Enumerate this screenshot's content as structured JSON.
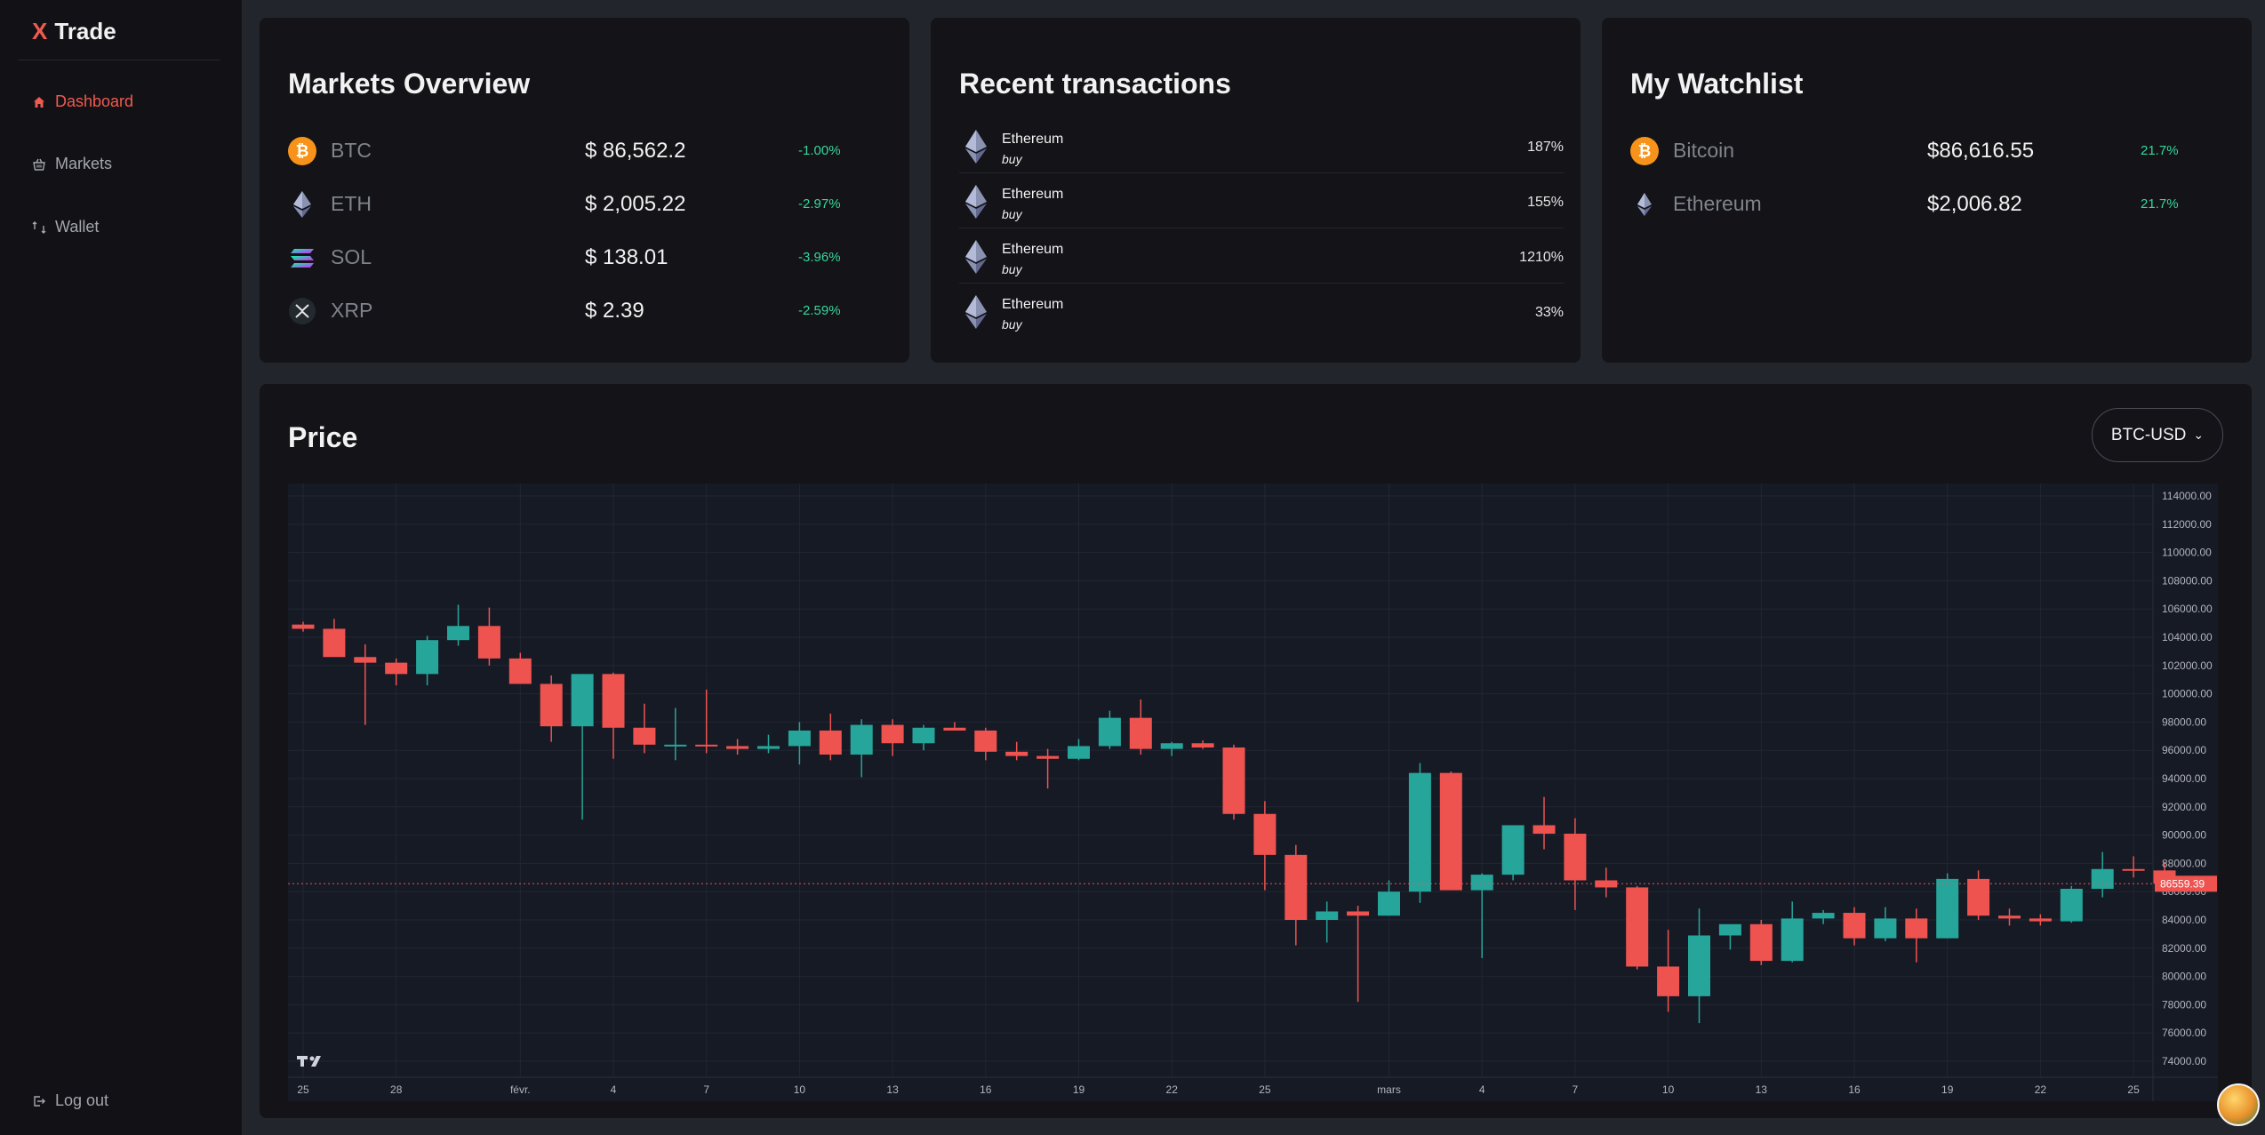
{
  "app": {
    "brand_x": "X",
    "brand_name": "Trade"
  },
  "sidebar": {
    "items": [
      {
        "label": "Dashboard",
        "icon": "home-icon",
        "active": true
      },
      {
        "label": "Markets",
        "icon": "basket-icon",
        "active": false
      },
      {
        "label": "Wallet",
        "icon": "wallet-icon",
        "active": false
      }
    ],
    "logout": "Log out"
  },
  "markets": {
    "title": "Markets Overview",
    "rows": [
      {
        "symbol": "BTC",
        "price": "$ 86,562.2",
        "change": "-1.00%",
        "icon": "btc-icon"
      },
      {
        "symbol": "ETH",
        "price": "$ 2,005.22",
        "change": "-2.97%",
        "icon": "eth-icon"
      },
      {
        "symbol": "SOL",
        "price": "$ 138.01",
        "change": "-3.96%",
        "icon": "sol-icon"
      },
      {
        "symbol": "XRP",
        "price": "$ 2.39",
        "change": "-2.59%",
        "icon": "xrp-icon"
      }
    ]
  },
  "transactions": {
    "title": "Recent transactions",
    "rows": [
      {
        "name": "Ethereum",
        "type": "buy",
        "pct": "187%"
      },
      {
        "name": "Ethereum",
        "type": "buy",
        "pct": "155%"
      },
      {
        "name": "Ethereum",
        "type": "buy",
        "pct": "1210%"
      },
      {
        "name": "Ethereum",
        "type": "buy",
        "pct": "33%"
      }
    ]
  },
  "watchlist": {
    "title": "My Watchlist",
    "rows": [
      {
        "name": "Bitcoin",
        "price": "$86,616.55",
        "change": "21.7%",
        "icon": "btc-icon"
      },
      {
        "name": "Ethereum",
        "price": "$2,006.82",
        "change": "21.7%",
        "icon": "eth-icon"
      }
    ]
  },
  "price": {
    "title": "Price",
    "pair": "BTC-USD"
  },
  "colors": {
    "up": "#26a69a",
    "down": "#ef5350",
    "accent": "#f05a4f",
    "positive_text": "#37d69a"
  },
  "chart_data": {
    "type": "candlestick",
    "y_ticks": [
      "114000.00",
      "112000.00",
      "110000.00",
      "108000.00",
      "106000.00",
      "104000.00",
      "102000.00",
      "100000.00",
      "98000.00",
      "96000.00",
      "94000.00",
      "92000.00",
      "90000.00",
      "88000.00",
      "86000.00",
      "84000.00",
      "82000.00",
      "80000.00",
      "78000.00",
      "76000.00",
      "74000.00"
    ],
    "ylim": [
      73000,
      115000
    ],
    "x_ticks": [
      {
        "label": "25",
        "index": 0
      },
      {
        "label": "28",
        "index": 3
      },
      {
        "label": "févr.",
        "index": 7
      },
      {
        "label": "4",
        "index": 10
      },
      {
        "label": "7",
        "index": 13
      },
      {
        "label": "10",
        "index": 16
      },
      {
        "label": "13",
        "index": 19
      },
      {
        "label": "16",
        "index": 22
      },
      {
        "label": "19",
        "index": 25
      },
      {
        "label": "22",
        "index": 28
      },
      {
        "label": "25",
        "index": 31
      },
      {
        "label": "mars",
        "index": 35
      },
      {
        "label": "4",
        "index": 38
      },
      {
        "label": "7",
        "index": 41
      },
      {
        "label": "10",
        "index": 44
      },
      {
        "label": "13",
        "index": 47
      },
      {
        "label": "16",
        "index": 50
      },
      {
        "label": "19",
        "index": 53
      },
      {
        "label": "22",
        "index": 56
      },
      {
        "label": "25",
        "index": 59
      }
    ],
    "last_price": "86559.39",
    "last_price_value": 86559.39,
    "candles": [
      [
        104900,
        105100,
        104400,
        104600
      ],
      [
        104600,
        105300,
        102700,
        102600
      ],
      [
        102600,
        103500,
        97800,
        102200
      ],
      [
        102200,
        102500,
        100600,
        101400
      ],
      [
        101400,
        104100,
        100600,
        103800
      ],
      [
        103800,
        106300,
        103400,
        104800
      ],
      [
        104800,
        106100,
        102000,
        102500
      ],
      [
        102500,
        102900,
        100800,
        100700
      ],
      [
        100700,
        101300,
        96600,
        97700
      ],
      [
        97700,
        101400,
        91100,
        101400
      ],
      [
        101400,
        101500,
        95400,
        97600
      ],
      [
        97600,
        99300,
        95800,
        96400
      ],
      [
        96400,
        99000,
        95300,
        96400
      ],
      [
        96400,
        100300,
        95800,
        96300
      ],
      [
        96300,
        96800,
        95700,
        96100
      ],
      [
        96100,
        97100,
        95800,
        96300
      ],
      [
        96300,
        98000,
        95000,
        97400
      ],
      [
        97400,
        98600,
        95300,
        95700
      ],
      [
        95700,
        98200,
        94100,
        97800
      ],
      [
        97800,
        98200,
        95600,
        96500
      ],
      [
        96500,
        97800,
        96000,
        97600
      ],
      [
        97600,
        98000,
        97400,
        97400
      ],
      [
        97400,
        97600,
        95300,
        95900
      ],
      [
        95900,
        96600,
        95300,
        95600
      ],
      [
        95600,
        96100,
        93300,
        95400
      ],
      [
        95400,
        96800,
        95300,
        96300
      ],
      [
        96300,
        98800,
        96100,
        98300
      ],
      [
        98300,
        99600,
        95700,
        96100
      ],
      [
        96100,
        96600,
        95600,
        96500
      ],
      [
        96500,
        96700,
        96100,
        96200
      ],
      [
        96200,
        96400,
        91100,
        91500
      ],
      [
        91500,
        92400,
        86100,
        88600
      ],
      [
        88600,
        89300,
        82200,
        84000
      ],
      [
        84000,
        85300,
        82400,
        84600
      ],
      [
        84600,
        85000,
        78200,
        84300
      ],
      [
        84300,
        86800,
        84300,
        86000
      ],
      [
        86000,
        95100,
        85200,
        94400
      ],
      [
        94400,
        94500,
        86100,
        86100
      ],
      [
        86100,
        87300,
        81300,
        87200
      ],
      [
        87200,
        90600,
        86800,
        90700
      ],
      [
        90700,
        92700,
        89000,
        90100
      ],
      [
        90100,
        91200,
        84700,
        86800
      ],
      [
        86800,
        87700,
        85600,
        86300
      ],
      [
        86300,
        86400,
        80500,
        80700
      ],
      [
        80700,
        83300,
        77500,
        78600
      ],
      [
        78600,
        84800,
        76700,
        82900
      ],
      [
        82900,
        83600,
        81900,
        83700
      ],
      [
        83700,
        84000,
        80800,
        81100
      ],
      [
        81100,
        85300,
        81000,
        84100
      ],
      [
        84100,
        84700,
        83700,
        84500
      ],
      [
        84500,
        84900,
        82200,
        82700
      ],
      [
        82700,
        84900,
        82500,
        84100
      ],
      [
        84100,
        84800,
        81000,
        82700
      ],
      [
        82700,
        87300,
        82700,
        86900
      ],
      [
        86900,
        87500,
        84000,
        84300
      ],
      [
        84300,
        84800,
        83600,
        84100
      ],
      [
        84100,
        84400,
        83600,
        83900
      ],
      [
        83900,
        86400,
        83800,
        86200
      ],
      [
        86200,
        88800,
        85600,
        87600
      ],
      [
        87600,
        88500,
        87000,
        87500
      ],
      [
        87500,
        88100,
        86400,
        86559
      ]
    ]
  }
}
